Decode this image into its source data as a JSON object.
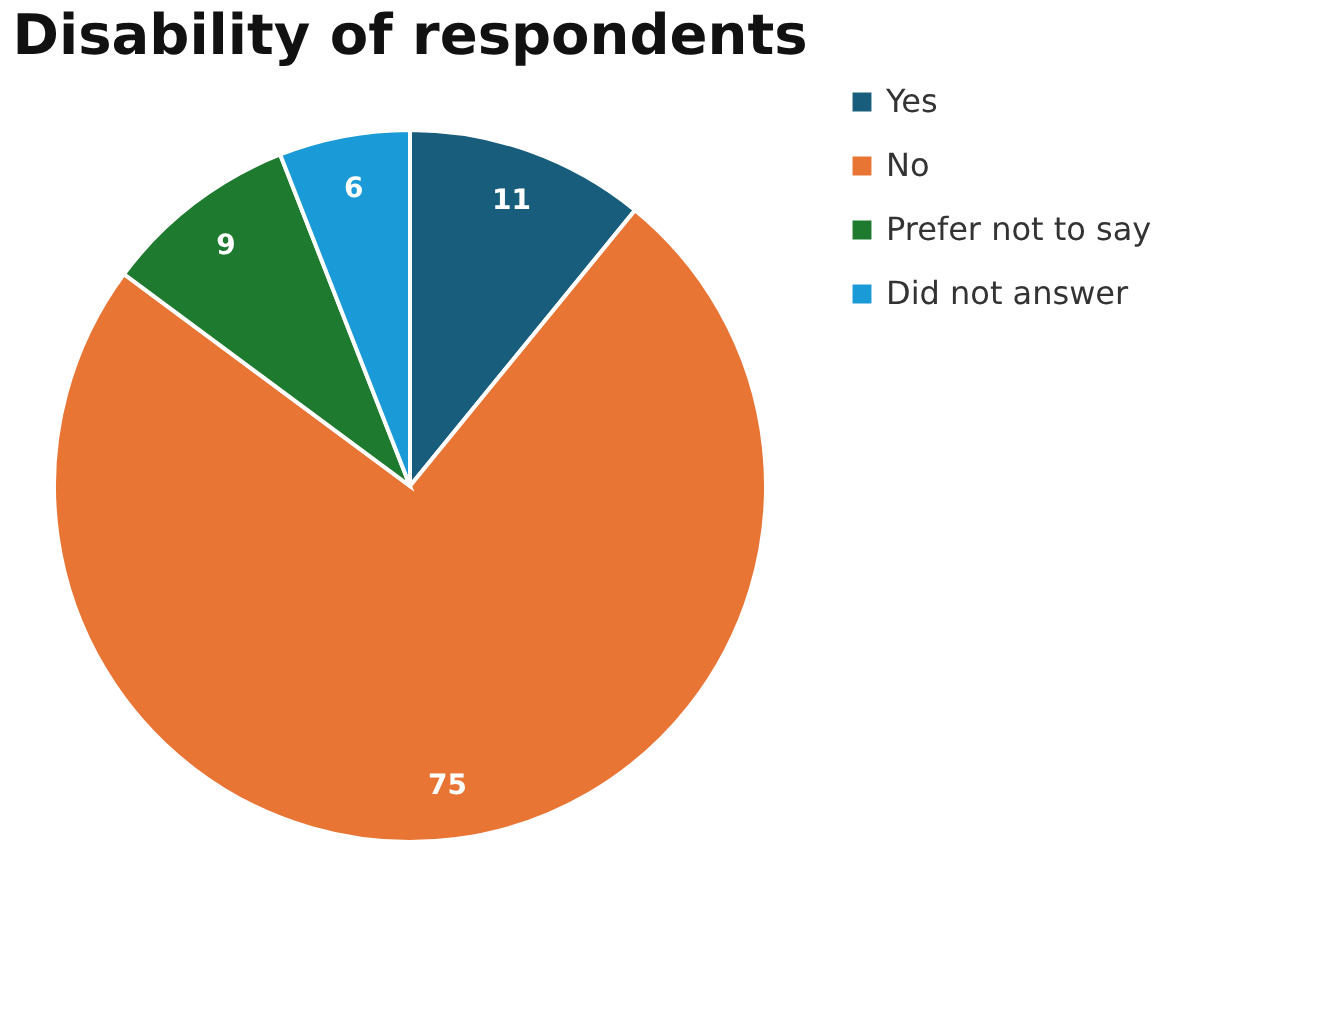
{
  "chart_data": {
    "type": "pie",
    "title": "Disability of respondents",
    "categories": [
      "Yes",
      "No",
      "Prefer not to say",
      "Did not answer"
    ],
    "values": [
      11,
      75,
      9,
      6
    ],
    "colors": [
      "#185e7c",
      "#e87534",
      "#1d7a2e",
      "#1a9ad6"
    ],
    "data_labels": true,
    "legend": "right"
  }
}
